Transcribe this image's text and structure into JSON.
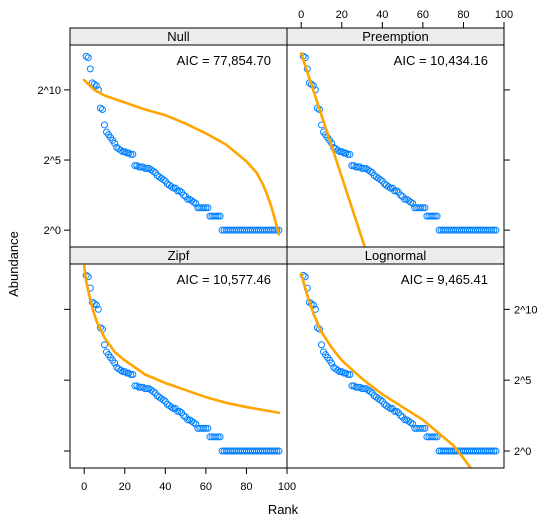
{
  "chart_data": {
    "type": "scatter",
    "xlabel": "Rank",
    "ylabel": "Abundance",
    "xlim": [
      -7,
      100
    ],
    "ylim": [
      -1.2,
      13.2
    ],
    "x_ticks": [
      0,
      20,
      40,
      60,
      80,
      100
    ],
    "y_ticks": [
      {
        "value": 0,
        "label": "2^0"
      },
      {
        "value": 5,
        "label": "2^5"
      },
      {
        "value": 10,
        "label": "2^10"
      }
    ],
    "point_color": "#0080ff",
    "curve_color": "#ffa500",
    "observed": [
      {
        "rank": 1,
        "log2": 12.4
      },
      {
        "rank": 2,
        "log2": 12.3
      },
      {
        "rank": 3,
        "log2": 11.5
      },
      {
        "rank": 4,
        "log2": 10.5
      },
      {
        "rank": 5,
        "log2": 10.4
      },
      {
        "rank": 6,
        "log2": 10.3
      },
      {
        "rank": 7,
        "log2": 10.0
      },
      {
        "rank": 8,
        "log2": 8.7
      },
      {
        "rank": 9,
        "log2": 8.6
      },
      {
        "rank": 10,
        "log2": 7.5
      },
      {
        "rank": 11,
        "log2": 7.0
      },
      {
        "rank": 12,
        "log2": 6.8
      },
      {
        "rank": 13,
        "log2": 6.6
      },
      {
        "rank": 14,
        "log2": 6.4
      },
      {
        "rank": 15,
        "log2": 6.2
      },
      {
        "rank": 16,
        "log2": 5.9
      },
      {
        "rank": 17,
        "log2": 5.8
      },
      {
        "rank": 18,
        "log2": 5.7
      },
      {
        "rank": 19,
        "log2": 5.6
      },
      {
        "rank": 20,
        "log2": 5.6
      },
      {
        "rank": 21,
        "log2": 5.5
      },
      {
        "rank": 22,
        "log2": 5.5
      },
      {
        "rank": 23,
        "log2": 5.4
      },
      {
        "rank": 24,
        "log2": 5.4
      },
      {
        "rank": 25,
        "log2": 4.6
      },
      {
        "rank": 26,
        "log2": 4.6
      },
      {
        "rank": 27,
        "log2": 4.5
      },
      {
        "rank": 28,
        "log2": 4.5
      },
      {
        "rank": 29,
        "log2": 4.5
      },
      {
        "rank": 30,
        "log2": 4.4
      },
      {
        "rank": 31,
        "log2": 4.4
      },
      {
        "rank": 32,
        "log2": 4.4
      },
      {
        "rank": 33,
        "log2": 4.3
      },
      {
        "rank": 34,
        "log2": 4.2
      },
      {
        "rank": 35,
        "log2": 4.1
      },
      {
        "rank": 36,
        "log2": 3.9
      },
      {
        "rank": 37,
        "log2": 3.8
      },
      {
        "rank": 38,
        "log2": 3.7
      },
      {
        "rank": 39,
        "log2": 3.6
      },
      {
        "rank": 40,
        "log2": 3.5
      },
      {
        "rank": 41,
        "log2": 3.3
      },
      {
        "rank": 42,
        "log2": 3.2
      },
      {
        "rank": 43,
        "log2": 3.1
      },
      {
        "rank": 44,
        "log2": 3.0
      },
      {
        "rank": 45,
        "log2": 3.0
      },
      {
        "rank": 46,
        "log2": 2.8
      },
      {
        "rank": 47,
        "log2": 2.8
      },
      {
        "rank": 48,
        "log2": 2.7
      },
      {
        "rank": 49,
        "log2": 2.5
      },
      {
        "rank": 50,
        "log2": 2.4
      },
      {
        "rank": 51,
        "log2": 2.2
      },
      {
        "rank": 52,
        "log2": 2.2
      },
      {
        "rank": 53,
        "log2": 2.1
      },
      {
        "rank": 54,
        "log2": 2.0
      },
      {
        "rank": 55,
        "log2": 1.9
      },
      {
        "rank": 56,
        "log2": 1.6
      },
      {
        "rank": 57,
        "log2": 1.6
      },
      {
        "rank": 58,
        "log2": 1.6
      },
      {
        "rank": 59,
        "log2": 1.6
      },
      {
        "rank": 60,
        "log2": 1.6
      },
      {
        "rank": 61,
        "log2": 1.6
      },
      {
        "rank": 62,
        "log2": 1.0
      },
      {
        "rank": 63,
        "log2": 1.0
      },
      {
        "rank": 64,
        "log2": 1.0
      },
      {
        "rank": 65,
        "log2": 1.0
      },
      {
        "rank": 66,
        "log2": 1.0
      },
      {
        "rank": 67,
        "log2": 1.0
      },
      {
        "rank": 68,
        "log2": 0
      },
      {
        "rank": 69,
        "log2": 0
      },
      {
        "rank": 70,
        "log2": 0
      },
      {
        "rank": 71,
        "log2": 0
      },
      {
        "rank": 72,
        "log2": 0
      },
      {
        "rank": 73,
        "log2": 0
      },
      {
        "rank": 74,
        "log2": 0
      },
      {
        "rank": 75,
        "log2": 0
      },
      {
        "rank": 76,
        "log2": 0
      },
      {
        "rank": 77,
        "log2": 0
      },
      {
        "rank": 78,
        "log2": 0
      },
      {
        "rank": 79,
        "log2": 0
      },
      {
        "rank": 80,
        "log2": 0
      },
      {
        "rank": 81,
        "log2": 0
      },
      {
        "rank": 82,
        "log2": 0
      },
      {
        "rank": 83,
        "log2": 0
      },
      {
        "rank": 84,
        "log2": 0
      },
      {
        "rank": 85,
        "log2": 0
      },
      {
        "rank": 86,
        "log2": 0
      },
      {
        "rank": 87,
        "log2": 0
      },
      {
        "rank": 88,
        "log2": 0
      },
      {
        "rank": 89,
        "log2": 0
      },
      {
        "rank": 90,
        "log2": 0
      },
      {
        "rank": 91,
        "log2": 0
      },
      {
        "rank": 92,
        "log2": 0
      },
      {
        "rank": 93,
        "log2": 0
      },
      {
        "rank": 94,
        "log2": 0
      },
      {
        "rank": 95,
        "log2": 0
      },
      {
        "rank": 96,
        "log2": 0
      }
    ],
    "panels": [
      {
        "name": "Null",
        "aic": "AIC = 77,854.70",
        "fitted": [
          [
            0,
            10.7
          ],
          [
            5,
            10.0
          ],
          [
            10,
            9.6
          ],
          [
            20,
            9.1
          ],
          [
            30,
            8.6
          ],
          [
            40,
            8.2
          ],
          [
            50,
            7.6
          ],
          [
            60,
            6.9
          ],
          [
            70,
            6.1
          ],
          [
            80,
            4.9
          ],
          [
            85,
            4.1
          ],
          [
            88,
            3.3
          ],
          [
            90,
            2.6
          ],
          [
            92,
            1.8
          ],
          [
            94,
            0.8
          ],
          [
            96,
            -0.3
          ]
        ]
      },
      {
        "name": "Preemption",
        "aic": "AIC = 10,434.16",
        "fitted": [
          [
            0,
            12.6
          ],
          [
            5,
            10.4
          ],
          [
            10,
            8.2
          ],
          [
            15,
            6.0
          ],
          [
            20,
            3.8
          ],
          [
            25,
            1.6
          ],
          [
            30,
            -0.6
          ],
          [
            32,
            -1.5
          ]
        ]
      },
      {
        "name": "Zipf",
        "aic": "AIC = 10,577.46",
        "fitted": [
          [
            0,
            13.1
          ],
          [
            1,
            12.0
          ],
          [
            2,
            11.3
          ],
          [
            4,
            10.1
          ],
          [
            6,
            9.2
          ],
          [
            8,
            8.6
          ],
          [
            10,
            8.0
          ],
          [
            15,
            7.0
          ],
          [
            20,
            6.4
          ],
          [
            30,
            5.4
          ],
          [
            40,
            4.8
          ],
          [
            50,
            4.3
          ],
          [
            60,
            3.8
          ],
          [
            70,
            3.4
          ],
          [
            80,
            3.1
          ],
          [
            96,
            2.7
          ]
        ]
      },
      {
        "name": "Lognormal",
        "aic": "AIC = 9,465.41",
        "fitted": [
          [
            0,
            12.5
          ],
          [
            3,
            11.0
          ],
          [
            6,
            9.7
          ],
          [
            10,
            8.4
          ],
          [
            15,
            7.3
          ],
          [
            20,
            6.4
          ],
          [
            30,
            5.1
          ],
          [
            40,
            4.0
          ],
          [
            50,
            3.1
          ],
          [
            60,
            2.2
          ],
          [
            70,
            1.0
          ],
          [
            75,
            0.4
          ],
          [
            80,
            -0.5
          ],
          [
            85,
            -1.5
          ]
        ]
      }
    ]
  }
}
